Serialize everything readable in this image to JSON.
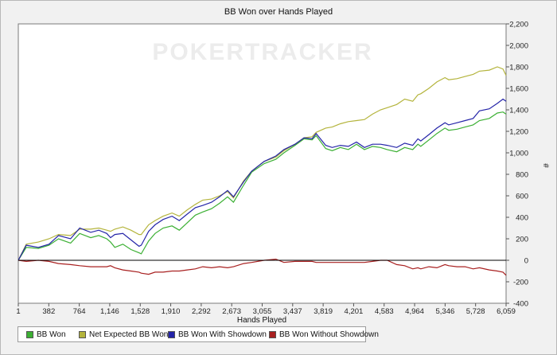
{
  "chart_data": {
    "type": "line",
    "title": "BB Won over Hands Played",
    "xlabel": "Hands Played",
    "ylabel": "#",
    "xlim": [
      1,
      6059
    ],
    "ylim": [
      -400,
      2200
    ],
    "x_ticks": [
      "1",
      "382",
      "764",
      "1,146",
      "1,528",
      "1,910",
      "2,292",
      "2,673",
      "3,055",
      "3,437",
      "3,819",
      "4,201",
      "4,583",
      "4,964",
      "5,346",
      "5,728",
      "6,059"
    ],
    "y_ticks": [
      {
        "value": 2200,
        "label": "2,200"
      },
      {
        "value": 2000,
        "label": "2,000"
      },
      {
        "value": 1800,
        "label": "1,800"
      },
      {
        "value": 1600,
        "label": "1,600"
      },
      {
        "value": 1400,
        "label": "1,400"
      },
      {
        "value": 1200,
        "label": "1,200"
      },
      {
        "value": 1000,
        "label": "1,000"
      },
      {
        "value": 800,
        "label": "800"
      },
      {
        "value": 600,
        "label": "600"
      },
      {
        "value": 400,
        "label": "400"
      },
      {
        "value": 200,
        "label": "200"
      },
      {
        "value": 0,
        "label": "0"
      },
      {
        "value": -200,
        "label": "-200"
      },
      {
        "value": -400,
        "label": "-400"
      }
    ],
    "grid": false,
    "legend_position": "bottom-left",
    "watermark": "POKERTRACKER",
    "series": [
      {
        "name": "BB Won",
        "color": "#3cb034",
        "x": [
          1,
          100,
          250,
          382,
          500,
          650,
          764,
          900,
          1000,
          1100,
          1146,
          1200,
          1300,
          1400,
          1500,
          1528,
          1620,
          1700,
          1800,
          1910,
          2000,
          2100,
          2200,
          2292,
          2400,
          2500,
          2600,
          2673,
          2800,
          2900,
          3055,
          3200,
          3300,
          3437,
          3550,
          3650,
          3700,
          3819,
          3900,
          4000,
          4100,
          4201,
          4300,
          4400,
          4500,
          4583,
          4700,
          4800,
          4900,
          4964,
          5000,
          5100,
          5200,
          5300,
          5346,
          5450,
          5550,
          5650,
          5728,
          5850,
          5950,
          6020,
          6059
        ],
        "y": [
          0,
          120,
          110,
          140,
          200,
          160,
          250,
          210,
          230,
          200,
          170,
          120,
          150,
          100,
          70,
          60,
          180,
          250,
          300,
          320,
          280,
          350,
          420,
          450,
          480,
          530,
          590,
          540,
          700,
          820,
          900,
          940,
          1000,
          1070,
          1130,
          1120,
          1160,
          1040,
          1020,
          1050,
          1030,
          1080,
          1030,
          1060,
          1050,
          1030,
          1010,
          1050,
          1030,
          1080,
          1060,
          1120,
          1180,
          1230,
          1210,
          1220,
          1240,
          1260,
          1300,
          1320,
          1370,
          1380,
          1360
        ]
      },
      {
        "name": "Net Expected BB Won",
        "color": "#b4b43c",
        "x": [
          1,
          100,
          250,
          382,
          500,
          650,
          764,
          900,
          1000,
          1100,
          1146,
          1200,
          1300,
          1400,
          1500,
          1528,
          1620,
          1700,
          1800,
          1910,
          2000,
          2100,
          2200,
          2292,
          2400,
          2500,
          2600,
          2673,
          2800,
          2900,
          3055,
          3200,
          3300,
          3437,
          3550,
          3650,
          3700,
          3819,
          3900,
          4000,
          4100,
          4201,
          4300,
          4400,
          4500,
          4583,
          4700,
          4800,
          4900,
          4964,
          5000,
          5100,
          5200,
          5300,
          5346,
          5450,
          5550,
          5650,
          5728,
          5850,
          5950,
          6020,
          6059
        ],
        "y": [
          0,
          150,
          170,
          200,
          240,
          230,
          290,
          290,
          300,
          280,
          270,
          290,
          310,
          280,
          240,
          240,
          330,
          370,
          410,
          440,
          410,
          470,
          520,
          560,
          570,
          600,
          640,
          580,
          740,
          830,
          920,
          960,
          1020,
          1080,
          1140,
          1150,
          1190,
          1230,
          1240,
          1270,
          1290,
          1300,
          1310,
          1360,
          1400,
          1420,
          1450,
          1500,
          1480,
          1540,
          1550,
          1600,
          1660,
          1700,
          1680,
          1690,
          1710,
          1730,
          1760,
          1770,
          1800,
          1780,
          1720
        ]
      },
      {
        "name": "BB Won With Showdown",
        "color": "#2424a8",
        "x": [
          1,
          100,
          250,
          382,
          500,
          650,
          764,
          900,
          1000,
          1100,
          1146,
          1200,
          1300,
          1400,
          1500,
          1528,
          1620,
          1700,
          1800,
          1910,
          2000,
          2100,
          2200,
          2292,
          2400,
          2500,
          2600,
          2673,
          2800,
          2900,
          3055,
          3200,
          3300,
          3437,
          3550,
          3650,
          3700,
          3819,
          3900,
          4000,
          4100,
          4201,
          4300,
          4400,
          4500,
          4583,
          4700,
          4800,
          4900,
          4964,
          5000,
          5100,
          5200,
          5300,
          5346,
          5450,
          5550,
          5650,
          5728,
          5850,
          5950,
          6020,
          6059
        ],
        "y": [
          0,
          140,
          120,
          150,
          230,
          200,
          300,
          260,
          280,
          250,
          210,
          240,
          250,
          190,
          130,
          140,
          270,
          330,
          380,
          410,
          370,
          430,
          490,
          510,
          540,
          590,
          650,
          590,
          730,
          830,
          920,
          970,
          1030,
          1080,
          1140,
          1130,
          1180,
          1070,
          1050,
          1070,
          1060,
          1100,
          1050,
          1080,
          1080,
          1070,
          1050,
          1090,
          1070,
          1130,
          1110,
          1170,
          1230,
          1280,
          1260,
          1280,
          1300,
          1320,
          1390,
          1410,
          1460,
          1500,
          1480
        ]
      },
      {
        "name": "BB Won Without Showdown",
        "color": "#a82020",
        "x": [
          1,
          100,
          250,
          382,
          500,
          650,
          764,
          900,
          1000,
          1100,
          1146,
          1200,
          1300,
          1400,
          1500,
          1528,
          1620,
          1700,
          1800,
          1910,
          2000,
          2100,
          2200,
          2292,
          2400,
          2500,
          2600,
          2673,
          2800,
          2900,
          3055,
          3200,
          3300,
          3437,
          3550,
          3650,
          3700,
          3819,
          3900,
          4000,
          4100,
          4201,
          4300,
          4400,
          4500,
          4583,
          4700,
          4800,
          4900,
          4964,
          5000,
          5100,
          5200,
          5300,
          5346,
          5450,
          5550,
          5650,
          5728,
          5850,
          5950,
          6020,
          6059
        ],
        "y": [
          0,
          -10,
          0,
          -10,
          -30,
          -40,
          -50,
          -60,
          -60,
          -60,
          -50,
          -70,
          -90,
          -100,
          -110,
          -120,
          -130,
          -110,
          -110,
          -100,
          -100,
          -90,
          -80,
          -60,
          -70,
          -60,
          -70,
          -60,
          -30,
          -20,
          0,
          10,
          -20,
          -10,
          -10,
          -10,
          -20,
          -20,
          -20,
          -20,
          -20,
          -20,
          -20,
          -10,
          0,
          0,
          -40,
          -50,
          -80,
          -70,
          -80,
          -60,
          -70,
          -40,
          -50,
          -60,
          -60,
          -80,
          -70,
          -90,
          -100,
          -110,
          -140
        ]
      }
    ]
  }
}
